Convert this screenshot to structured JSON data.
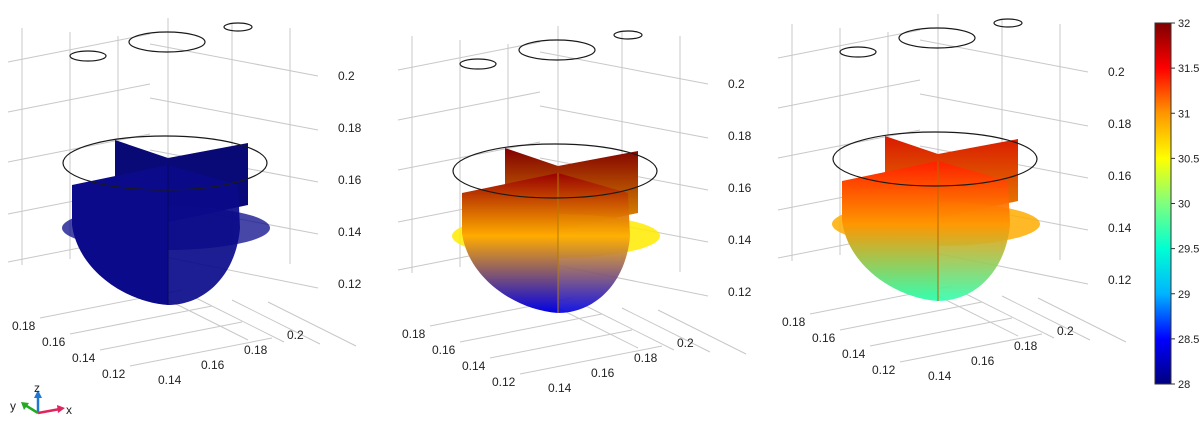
{
  "figure": {
    "panels": [
      {
        "name": "panel-geometry",
        "coloring": "uniform",
        "uniform_color": "#0a0a8a",
        "z_ticks": [
          "0.2",
          "0.18",
          "0.16",
          "0.14",
          "0.12"
        ],
        "y_ticks": [
          "0.18",
          "0.16",
          "0.14",
          "0.12"
        ],
        "x_ticks": [
          "0.14",
          "0.16",
          "0.18",
          "0.2"
        ]
      },
      {
        "name": "panel-temperature-a",
        "coloring": "gradient",
        "level_top": 31.9,
        "level_mid": 30.9,
        "level_bottom": 28.4,
        "disc_level": 30.6,
        "z_ticks": [
          "0.2",
          "0.18",
          "0.16",
          "0.14",
          "0.12"
        ],
        "y_ticks": [
          "0.18",
          "0.16",
          "0.14",
          "0.12"
        ],
        "x_ticks": [
          "0.14",
          "0.16",
          "0.18",
          "0.2"
        ]
      },
      {
        "name": "panel-temperature-b",
        "coloring": "gradient",
        "level_top": 31.4,
        "level_mid": 31.0,
        "level_bottom": 29.7,
        "disc_level": 30.9,
        "z_ticks": [
          "0.2",
          "0.18",
          "0.16",
          "0.14",
          "0.12"
        ],
        "y_ticks": [
          "0.18",
          "0.16",
          "0.14",
          "0.12"
        ],
        "x_ticks": [
          "0.14",
          "0.16",
          "0.18",
          "0.2"
        ]
      }
    ],
    "colorbar": {
      "min": 28,
      "max": 32,
      "tick_labels": [
        "32",
        "31.5",
        "31",
        "30.5",
        "30",
        "29.5",
        "29",
        "28.5",
        "28"
      ],
      "colormap": [
        "#00007f",
        "#0000ff",
        "#00b4ff",
        "#00ffd2",
        "#7fff7f",
        "#ffff00",
        "#ff9600",
        "#ff0000",
        "#7f0000"
      ]
    },
    "axis_triad": {
      "x_label": "x",
      "y_label": "y",
      "z_label": "z",
      "x_color": "#e0245e",
      "y_color": "#22aa22",
      "z_color": "#1e78d0"
    }
  }
}
